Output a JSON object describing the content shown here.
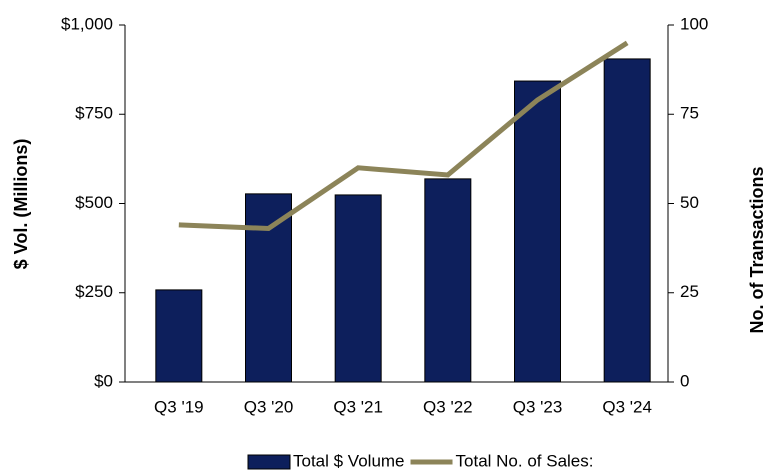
{
  "chart_data": {
    "type": "bar_line",
    "categories": [
      "Q3 '19",
      "Q3 '20",
      "Q3 '21",
      "Q3 '22",
      "Q3 '23",
      "Q3 '24"
    ],
    "series": [
      {
        "name": "Total $ Volume",
        "color": "#0d1f5c",
        "type": "bar",
        "values": [
          258,
          527,
          524,
          569,
          843,
          905
        ]
      },
      {
        "name": "Total No. of Sales:",
        "color": "#8c8459",
        "type": "line",
        "axis": "y2",
        "values": [
          44,
          43,
          60,
          58,
          79,
          95
        ]
      }
    ],
    "ylabel": "$ Vol. (Millions)",
    "y2label": "No. of Transactions",
    "ylim": [
      0,
      1000
    ],
    "yticks": [
      {
        "value": 0,
        "label": "$0"
      },
      {
        "value": 250,
        "label": "$250"
      },
      {
        "value": 500,
        "label": "$500"
      },
      {
        "value": 750,
        "label": "$750"
      },
      {
        "value": 1000,
        "label": "$1,000"
      }
    ],
    "y2lim": [
      0,
      100
    ],
    "y2ticks": [
      0,
      25,
      50,
      75,
      100
    ],
    "legend": "bottom"
  }
}
